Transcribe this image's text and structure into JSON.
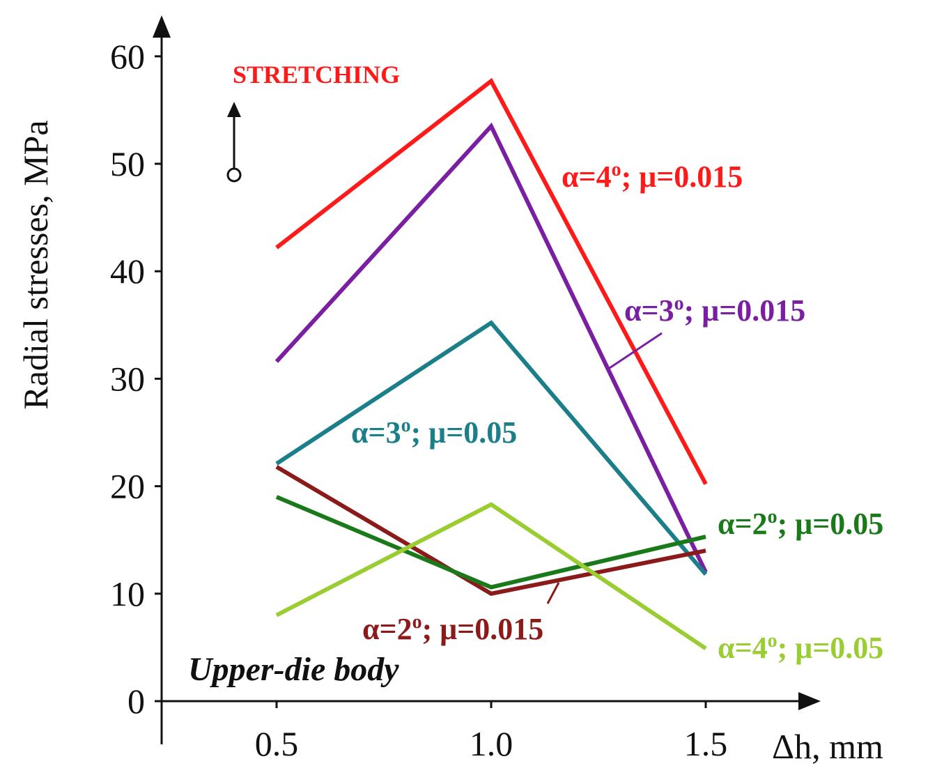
{
  "chart_data": {
    "type": "line",
    "xlabel": "Δh, mm",
    "ylabel": "Radial stresses, MPa",
    "x": [
      0.5,
      1.0,
      1.5
    ],
    "x_tick_labels": [
      "0.5",
      "1.0",
      "1.5"
    ],
    "y_ticks": [
      0,
      10,
      20,
      30,
      40,
      50,
      60
    ],
    "y_tick_labels": [
      "0",
      "10",
      "20",
      "30",
      "40",
      "50",
      "60"
    ],
    "xlim": [
      0.23,
      1.77
    ],
    "ylim": [
      0,
      63
    ],
    "grid": false,
    "annotations": {
      "stretching": "STRETCHING",
      "region": "Upper-die body"
    },
    "series": [
      {
        "name": "α=4°; μ=0.015",
        "label_main": "α=4",
        "label_deg": "o",
        "label_rest": "; μ=0.015",
        "color": "#ff1a1a",
        "values": [
          42.2,
          57.7,
          20.2
        ]
      },
      {
        "name": "α=3°; μ=0.015",
        "label_main": "α=3",
        "label_deg": "o",
        "label_rest": "; μ=0.015",
        "color": "#7b1fa2",
        "values": [
          31.6,
          53.5,
          12.0
        ]
      },
      {
        "name": "α=3°; μ=0.05",
        "label_main": "α=3",
        "label_deg": "o",
        "label_rest": "; μ=0.05",
        "color": "#1b7f8a",
        "values": [
          22.1,
          35.2,
          11.8
        ]
      },
      {
        "name": "α=2°; μ=0.015",
        "label_main": "α=2",
        "label_deg": "o",
        "label_rest": "; μ=0.015",
        "color": "#8b1a1a",
        "values": [
          21.8,
          10.0,
          14.0
        ]
      },
      {
        "name": "α=2°; μ=0.05",
        "label_main": "α=2",
        "label_deg": "o",
        "label_rest": "; μ=0.05",
        "color": "#1a7a1a",
        "values": [
          19.0,
          10.6,
          15.3
        ]
      },
      {
        "name": "α=4°; μ=0.05",
        "label_main": "α=4",
        "label_deg": "o",
        "label_rest": "; μ=0.05",
        "color": "#9acd32",
        "values": [
          8.0,
          18.3,
          4.9
        ]
      }
    ]
  }
}
